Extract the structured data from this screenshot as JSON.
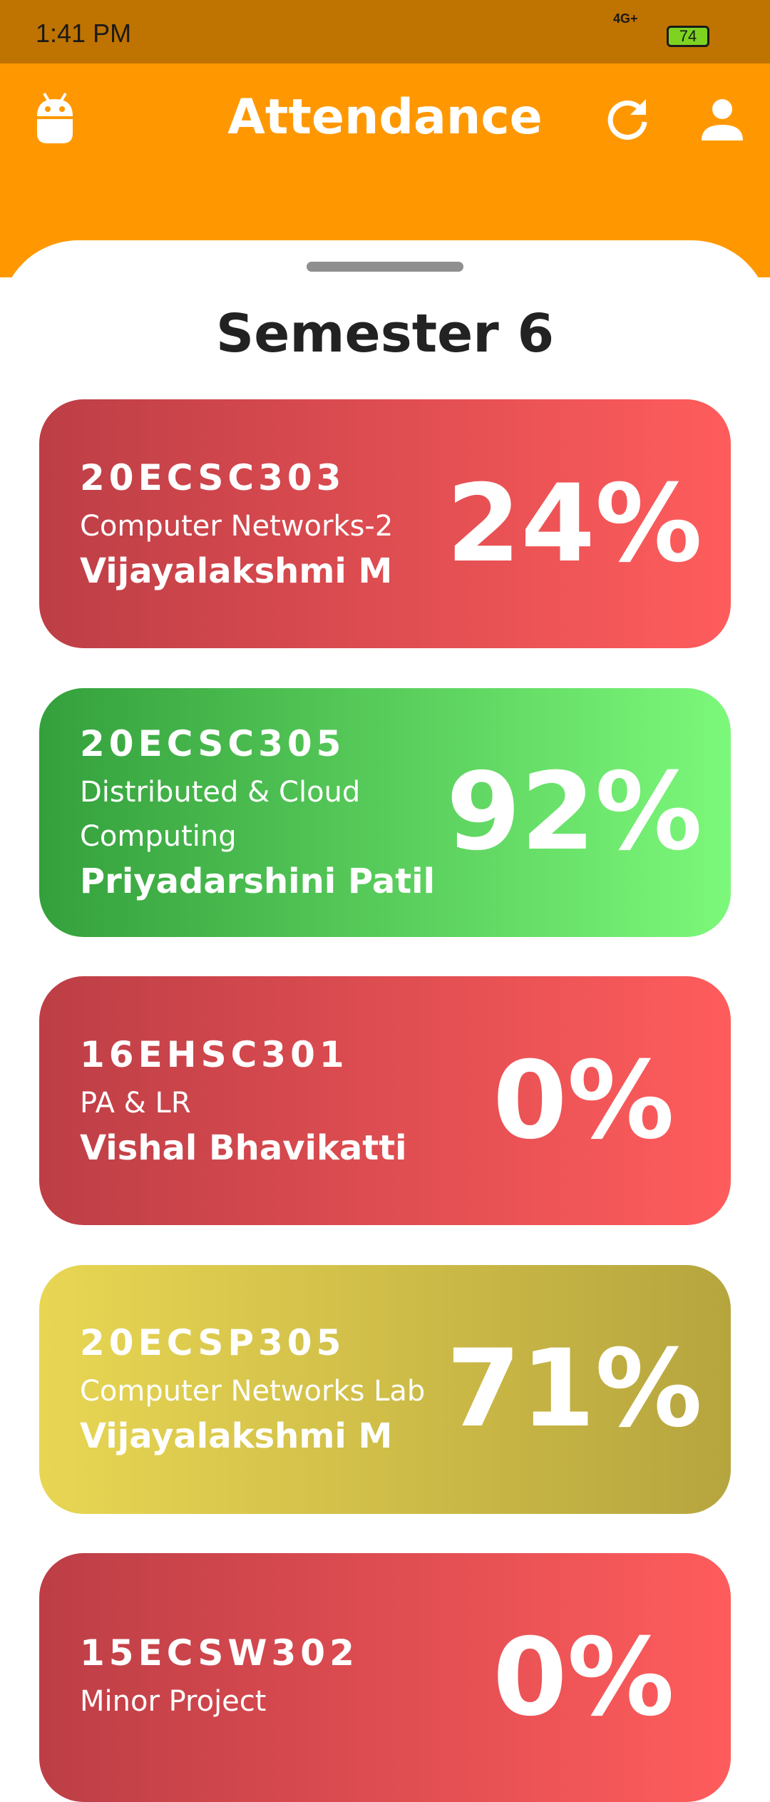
{
  "status_bar": {
    "time": "1:41 PM",
    "network": "4G+",
    "battery": "74"
  },
  "header": {
    "title": "Attendance"
  },
  "semester": "Semester 6",
  "courses": [
    {
      "code": "20ECSC303",
      "name": "Computer Networks-2",
      "faculty": "Vijayalakshmi M",
      "attendance": "24%",
      "gradient": [
        "#bd3e46",
        "#ff5c5c"
      ]
    },
    {
      "code": "20ECSC305",
      "name": "Distributed & Cloud Computing",
      "faculty": "Priyadarshini Patil",
      "attendance": "92%",
      "gradient": [
        "#34a03c",
        "#7cf87a"
      ]
    },
    {
      "code": "16EHSC301",
      "name": "PA & LR",
      "faculty": "Vishal Bhavikatti",
      "attendance": "0%",
      "gradient": [
        "#bd3e46",
        "#ff5c5c"
      ]
    },
    {
      "code": "20ECSP305",
      "name": "Computer Networks Lab",
      "faculty": "Vijayalakshmi M",
      "attendance": "71%",
      "gradient": [
        "#e8d653",
        "#b6a53e"
      ]
    },
    {
      "code": "15ECSW302",
      "name": "Minor Project",
      "attendance": "0%",
      "gradient": [
        "#bd3e46",
        "#ff5c5c"
      ]
    }
  ]
}
